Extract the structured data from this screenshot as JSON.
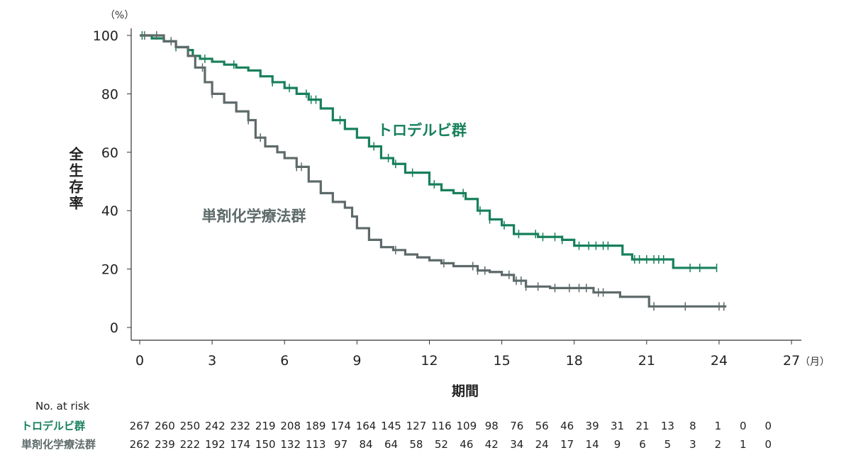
{
  "chart_data": {
    "type": "line",
    "subtype": "kaplan-meier step",
    "title": "",
    "xlabel": "期間",
    "x_unit": "（月）",
    "ylabel": "全生存率",
    "y_unit": "（%）",
    "xlim": [
      0,
      27
    ],
    "ylim": [
      0,
      100
    ],
    "x_ticks": [
      0,
      3,
      6,
      9,
      12,
      15,
      18,
      21,
      24,
      27
    ],
    "y_ticks": [
      0,
      20,
      40,
      60,
      80,
      100
    ],
    "grid": false,
    "colors": {
      "trodelvy": "#17805a",
      "chemo": "#5e6a6a"
    },
    "series": [
      {
        "name": "トロデルビ群",
        "color": "#17805a",
        "steps": [
          [
            0,
            100
          ],
          [
            0.5,
            99
          ],
          [
            1,
            98
          ],
          [
            1.5,
            96
          ],
          [
            2,
            95
          ],
          [
            2.2,
            93
          ],
          [
            2.5,
            92
          ],
          [
            3,
            91
          ],
          [
            3.5,
            90
          ],
          [
            4,
            89
          ],
          [
            4.5,
            88
          ],
          [
            5,
            86
          ],
          [
            5.5,
            84
          ],
          [
            6,
            82
          ],
          [
            6.5,
            80
          ],
          [
            7,
            78
          ],
          [
            7.5,
            75
          ],
          [
            8,
            71
          ],
          [
            8.5,
            68
          ],
          [
            9,
            65
          ],
          [
            9.5,
            62
          ],
          [
            10,
            58
          ],
          [
            10.5,
            56
          ],
          [
            11,
            53
          ],
          [
            12,
            49
          ],
          [
            12.5,
            47
          ],
          [
            13,
            46
          ],
          [
            13.5,
            44
          ],
          [
            14,
            40
          ],
          [
            14.5,
            37
          ],
          [
            15,
            35
          ],
          [
            15.5,
            32
          ],
          [
            16.5,
            31
          ],
          [
            17.5,
            30
          ],
          [
            18,
            28
          ],
          [
            20,
            25
          ],
          [
            20.4,
            23.3
          ],
          [
            22.1,
            20.4
          ]
        ],
        "end": 23.9,
        "censored": [
          0.1,
          1.5,
          2,
          2.7,
          3.9,
          5.5,
          6.2,
          6.9,
          7.1,
          7.3,
          8.3,
          9.7,
          10.3,
          10.6,
          11.3,
          12.2,
          13.4,
          14.1,
          14.5,
          15.1,
          15.7,
          16.4,
          16.7,
          17.2,
          17.5,
          18.2,
          18.6,
          18.9,
          19.2,
          19.4,
          20.5,
          20.7,
          21,
          21.3,
          21.5,
          21.7,
          22.8,
          23.2,
          23.9
        ],
        "label": "トロデルビ群"
      },
      {
        "name": "単剤化学療法群",
        "color": "#5e6a6a",
        "steps": [
          [
            0,
            100
          ],
          [
            1,
            98
          ],
          [
            1.5,
            96
          ],
          [
            2,
            93
          ],
          [
            2.3,
            89
          ],
          [
            2.7,
            84
          ],
          [
            3,
            80
          ],
          [
            3.5,
            77
          ],
          [
            4,
            74
          ],
          [
            4.5,
            71
          ],
          [
            4.8,
            65
          ],
          [
            5.2,
            62
          ],
          [
            5.7,
            60
          ],
          [
            6,
            58
          ],
          [
            6.5,
            55
          ],
          [
            7,
            50
          ],
          [
            7.5,
            46
          ],
          [
            8,
            43
          ],
          [
            8.5,
            41
          ],
          [
            8.8,
            38
          ],
          [
            9,
            34
          ],
          [
            9.5,
            30
          ],
          [
            10,
            27.5
          ],
          [
            10.5,
            26.5
          ],
          [
            11,
            25
          ],
          [
            11.5,
            24
          ],
          [
            12,
            23
          ],
          [
            12.5,
            22
          ],
          [
            13,
            21
          ],
          [
            14,
            19.5
          ],
          [
            14.5,
            19
          ],
          [
            15,
            18
          ],
          [
            15.5,
            16
          ],
          [
            16,
            14
          ],
          [
            17,
            13.5
          ],
          [
            18.8,
            12
          ],
          [
            19.9,
            10.5
          ],
          [
            21.1,
            7.2
          ]
        ],
        "end": 24.3,
        "censored": [
          0.2,
          0.7,
          1.3,
          2.6,
          3,
          4.5,
          5,
          6.5,
          6.7,
          10.6,
          12.6,
          13.8,
          14,
          14.3,
          15.3,
          15.6,
          15.8,
          16,
          16.5,
          17.2,
          17.8,
          18.2,
          18.5,
          19,
          19.2,
          21.3,
          22.6,
          24,
          24.2
        ],
        "label": "単剤化学療法群"
      }
    ]
  },
  "at_risk": {
    "title": "No. at risk",
    "rows": [
      {
        "label": "トロデルビ群",
        "values": [
          "267",
          "260",
          "250",
          "242",
          "232",
          "219",
          "208",
          "189",
          "174",
          "164",
          "145",
          "127",
          "116",
          "109",
          "98",
          "76",
          "56",
          "46",
          "39",
          "31",
          "21",
          "13",
          "8",
          "1",
          "0",
          "0"
        ]
      },
      {
        "label": "単剤化学療法群",
        "values": [
          "262",
          "239",
          "222",
          "192",
          "174",
          "150",
          "132",
          "113",
          "97",
          "84",
          "64",
          "58",
          "52",
          "46",
          "42",
          "34",
          "24",
          "17",
          "14",
          "9",
          "6",
          "5",
          "3",
          "2",
          "1",
          "0"
        ]
      }
    ]
  }
}
